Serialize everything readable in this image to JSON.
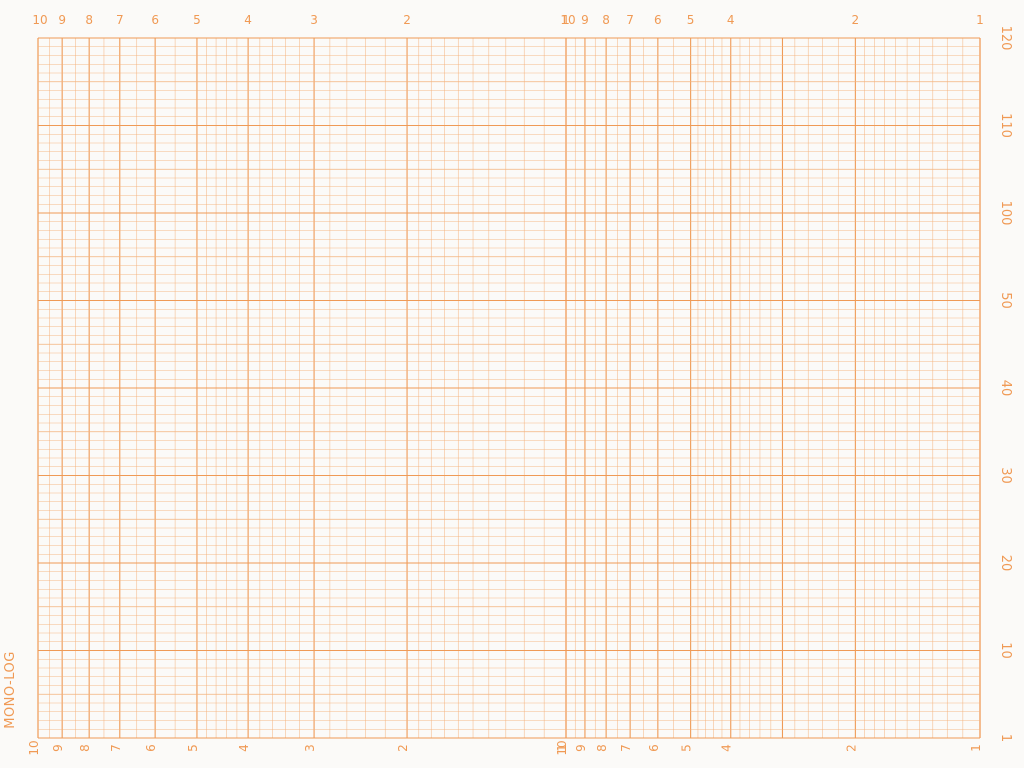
{
  "paper": {
    "side_label": "MONO-LOG",
    "grid_color": "#f4b27c",
    "major_color": "#ef9a56",
    "label_color": "#f09a55",
    "background": "#fbfaf8",
    "log_axis": {
      "cycles": 2,
      "direction": "decreasing-left-to-right",
      "cycle_labels": [
        "10",
        "9",
        "8",
        "7",
        "6",
        "5",
        "4",
        "3",
        "2",
        "1"
      ],
      "second_cycle_labels": [
        "10",
        "9",
        "8",
        "7",
        "6",
        "5",
        "4",
        "2",
        "1"
      ]
    },
    "linear_axis": {
      "labels_bottom_to_top": [
        "1",
        "10",
        "20",
        "30",
        "40",
        "50",
        "100",
        "110",
        "120"
      ]
    }
  }
}
